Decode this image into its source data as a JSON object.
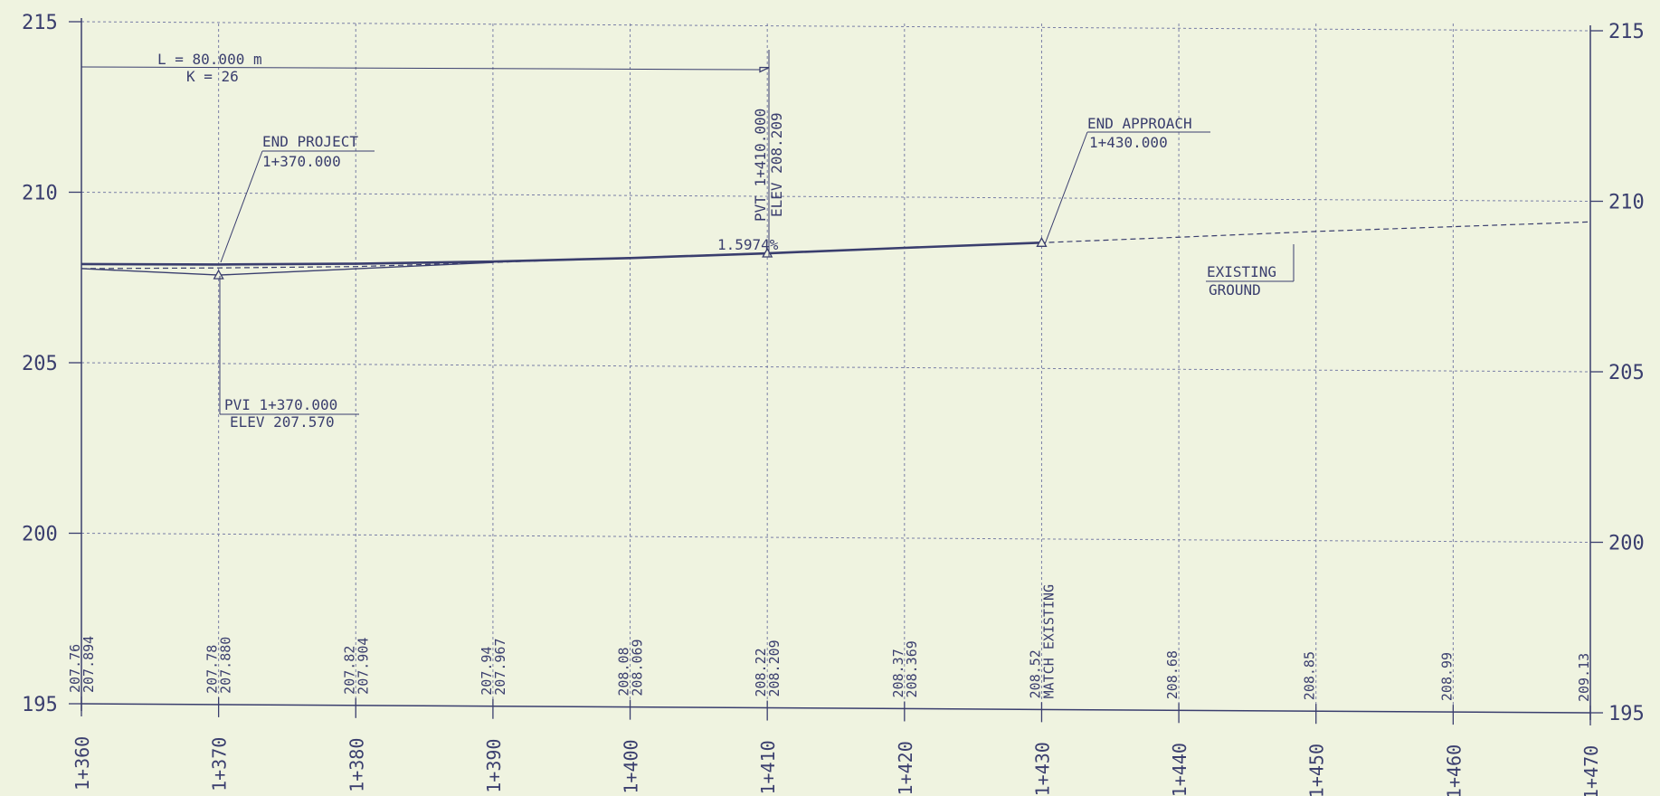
{
  "chart_data": {
    "type": "line",
    "x_range": [
      1360,
      1470
    ],
    "y_range": [
      195,
      215
    ],
    "elevation_ticks": [
      195,
      200,
      205,
      210,
      215
    ],
    "elevation_tick_labels": [
      "195",
      "200",
      "205",
      "210",
      "215"
    ],
    "stations": [
      {
        "x": 1360,
        "label": "1+360",
        "ground": "207.76",
        "design": "207.894"
      },
      {
        "x": 1370,
        "label": "1+370",
        "ground": "207.78",
        "design": "207.880"
      },
      {
        "x": 1380,
        "label": "1+380",
        "ground": "207.82",
        "design": "207.904"
      },
      {
        "x": 1390,
        "label": "1+390",
        "ground": "207.94",
        "design": "207.967"
      },
      {
        "x": 1400,
        "label": "1+400",
        "ground": "208.08",
        "design": "208.069"
      },
      {
        "x": 1410,
        "label": "1+410",
        "ground": "208.22",
        "design": "208.209"
      },
      {
        "x": 1420,
        "label": "1+420",
        "ground": "208.37",
        "design": "208.369"
      },
      {
        "x": 1430,
        "label": "1+430",
        "ground": "208.52",
        "design": "MATCH EXISTING"
      },
      {
        "x": 1440,
        "label": "1+440",
        "ground": "208.68",
        "design": ""
      },
      {
        "x": 1450,
        "label": "1+450",
        "ground": "208.85",
        "design": ""
      },
      {
        "x": 1460,
        "label": "1+460",
        "ground": "208.99",
        "design": ""
      },
      {
        "x": 1470,
        "label": "1+470",
        "ground": "209.13",
        "design": ""
      }
    ],
    "design_profile": [
      {
        "x": 1360,
        "y": 207.894
      },
      {
        "x": 1370,
        "y": 207.88
      },
      {
        "x": 1380,
        "y": 207.904
      },
      {
        "x": 1390,
        "y": 207.967
      },
      {
        "x": 1400,
        "y": 208.069
      },
      {
        "x": 1410,
        "y": 208.209
      },
      {
        "x": 1420,
        "y": 208.369
      },
      {
        "x": 1430,
        "y": 208.52
      }
    ],
    "existing_ground": [
      {
        "x": 1360,
        "y": 207.76
      },
      {
        "x": 1370,
        "y": 207.78
      },
      {
        "x": 1380,
        "y": 207.82
      },
      {
        "x": 1390,
        "y": 207.94
      },
      {
        "x": 1400,
        "y": 208.08
      },
      {
        "x": 1410,
        "y": 208.22
      },
      {
        "x": 1420,
        "y": 208.37
      },
      {
        "x": 1430,
        "y": 208.52
      },
      {
        "x": 1440,
        "y": 208.68
      },
      {
        "x": 1450,
        "y": 208.85
      },
      {
        "x": 1460,
        "y": 208.99
      },
      {
        "x": 1470,
        "y": 209.13
      }
    ],
    "pvi_ground": {
      "x": 1370,
      "y": 207.57
    },
    "annotations": {
      "curve_length": "L = 80.000 m",
      "k_value": "K = 26",
      "end_project_title": "END PROJECT",
      "end_project_station": "1+370.000",
      "pvi_station": "PVI 1+370.000",
      "pvi_elev": "ELEV 207.570",
      "pvt_station": "PVT 1+410.000",
      "pvt_elev": "ELEV 208.209",
      "grade": "1.5974%",
      "end_approach_title": "END APPROACH",
      "end_approach_station": "1+430.000",
      "existing_ground_line1": "EXISTING",
      "existing_ground_line2": "GROUND"
    }
  }
}
